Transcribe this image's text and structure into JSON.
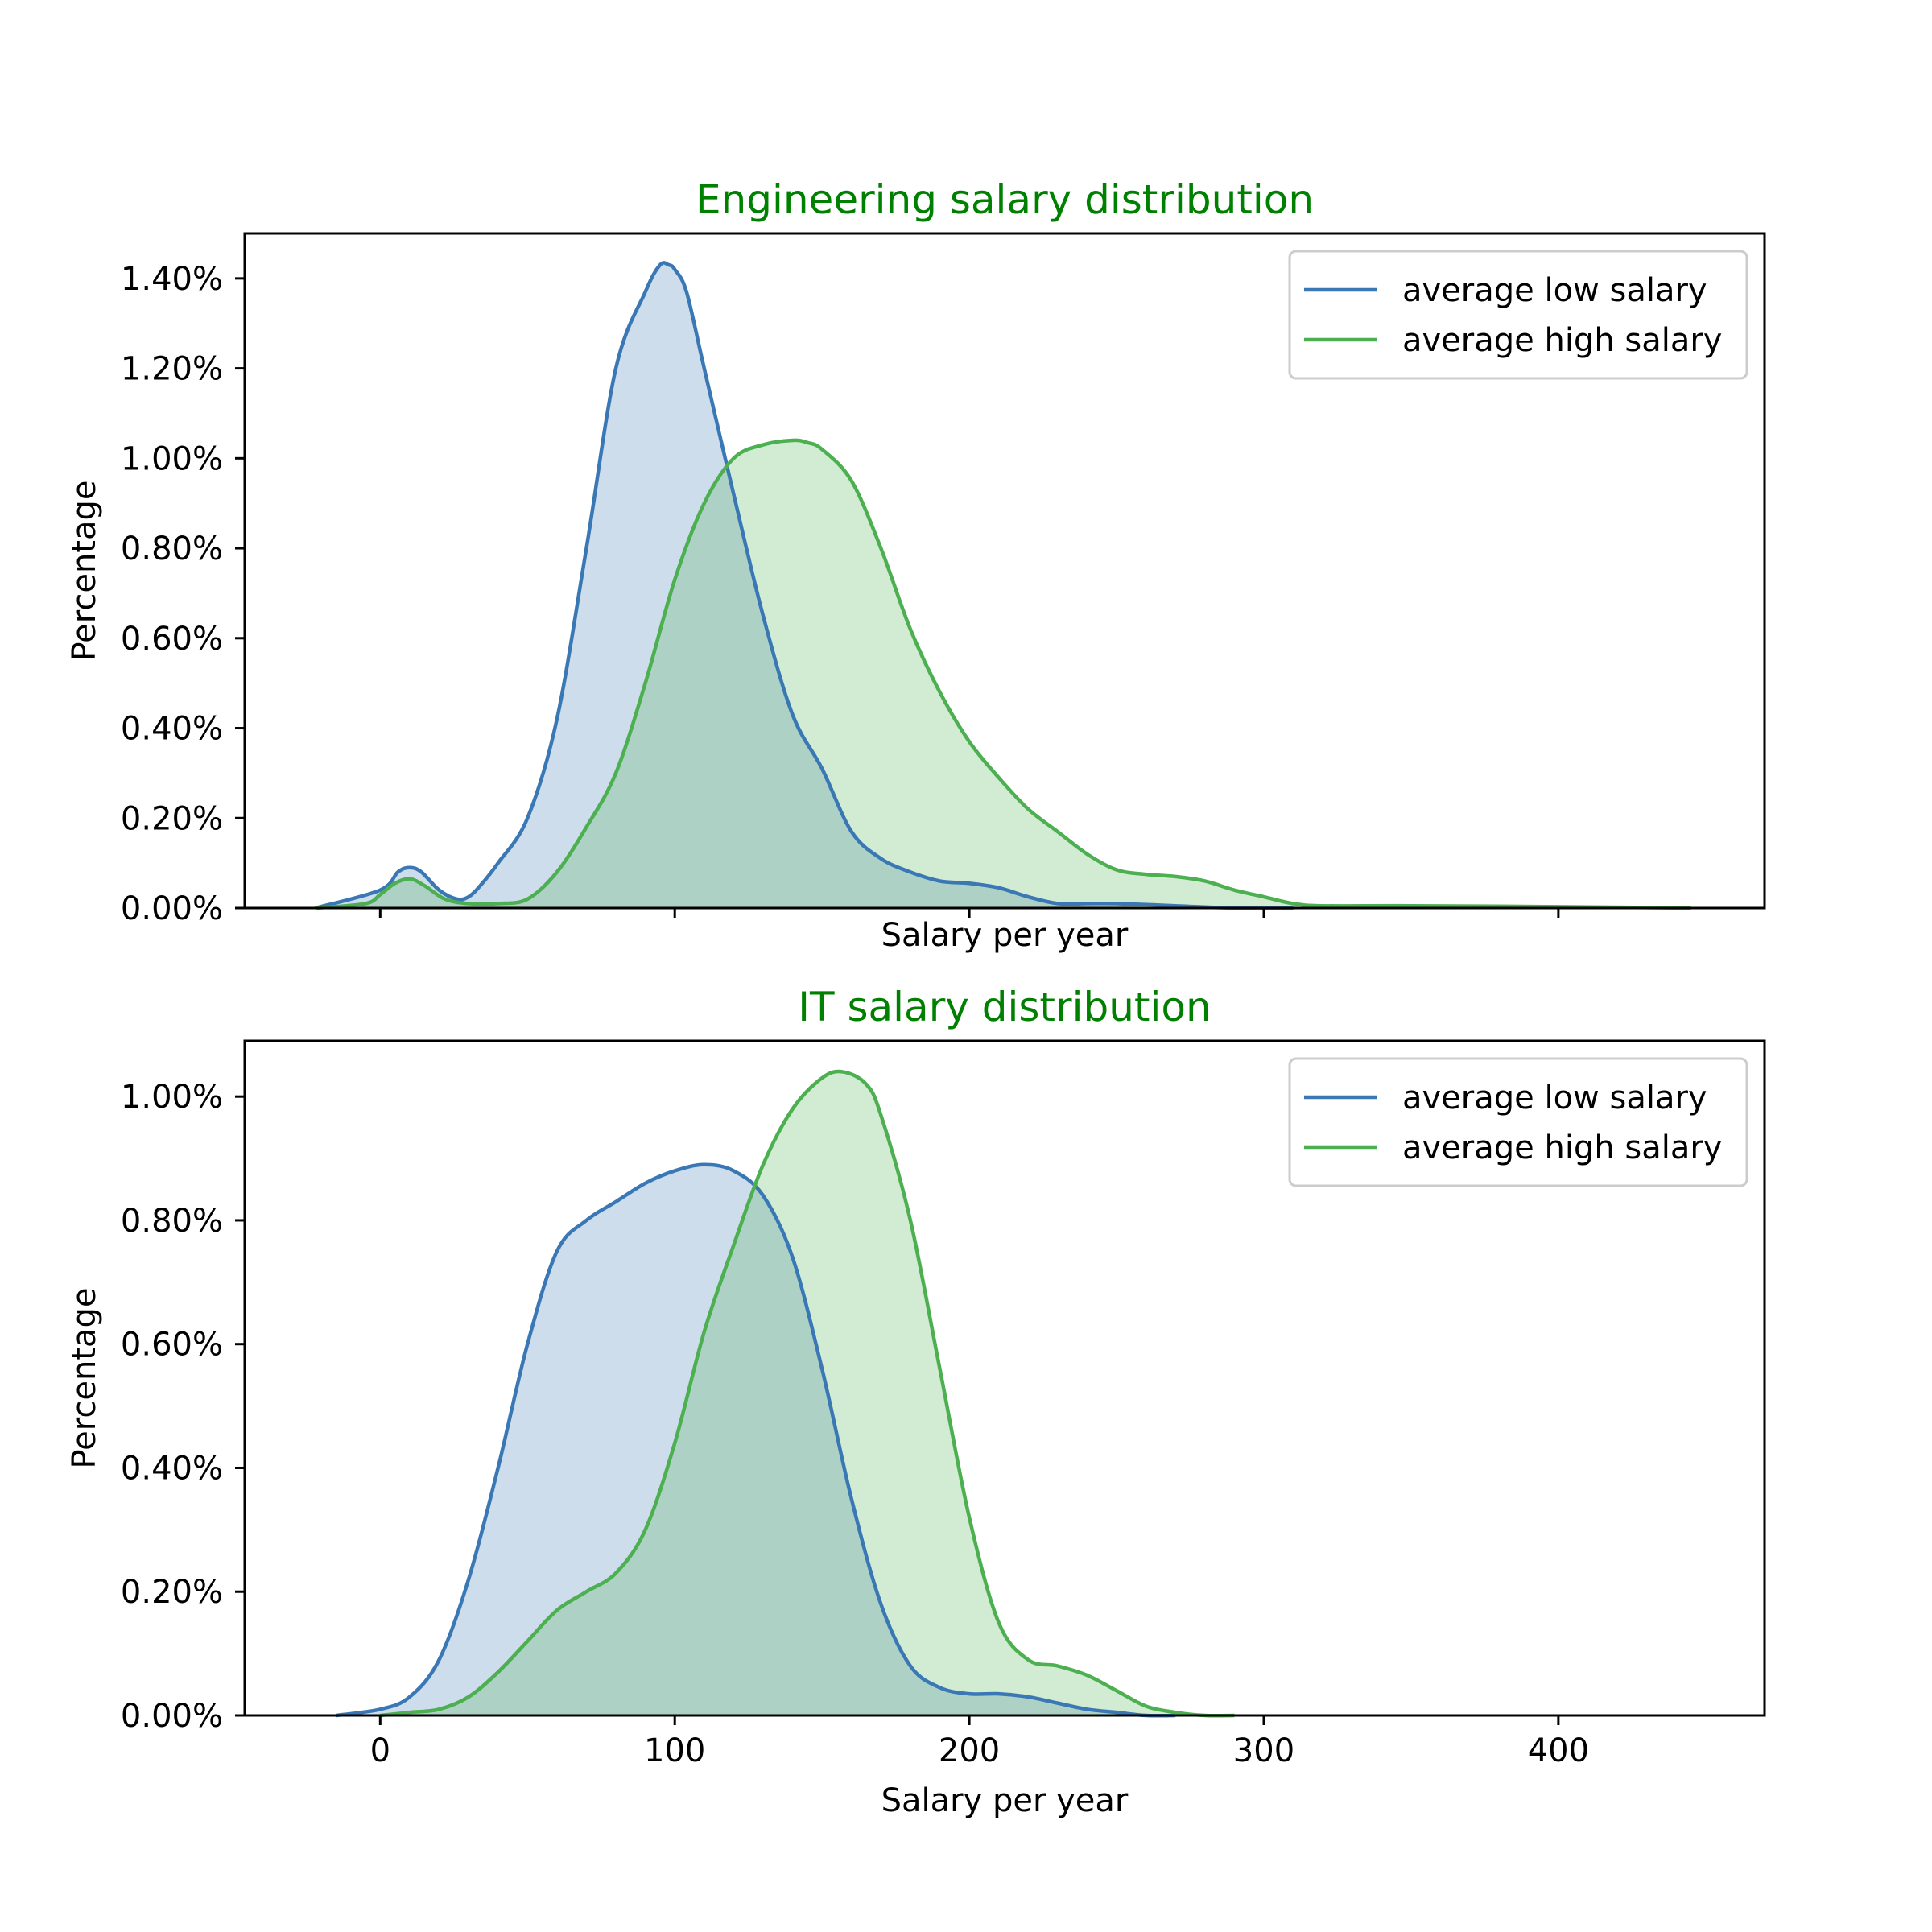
{
  "colors": {
    "low": "#3a78b5",
    "low_fill": "#cadcec",
    "high": "#4caf50",
    "high_fill": "#d2ebd3",
    "title": "#008000"
  },
  "chart_data": [
    {
      "type": "area",
      "title": "Engineering salary distribution",
      "xlabel": "Salary per year",
      "ylabel": "Percentage",
      "xlim": [
        -46,
        470
      ],
      "ylim": [
        0,
        1.5
      ],
      "x_ticks": [
        0,
        100,
        200,
        300,
        400
      ],
      "x_tick_labels_shown": false,
      "y_ticks": [
        0,
        0.2,
        0.4,
        0.6,
        0.8,
        1.0,
        1.2,
        1.4
      ],
      "y_tick_labels": [
        "0.00%",
        "0.20%",
        "0.40%",
        "0.60%",
        "0.80%",
        "1.00%",
        "1.20%",
        "1.40%"
      ],
      "legend_position": "upper right",
      "grid": false,
      "series": [
        {
          "name": "average low salary",
          "color_key": "low",
          "x": [
            -22,
            0,
            6,
            10,
            14,
            20,
            26,
            30,
            34,
            40,
            50,
            60,
            70,
            80,
            90,
            95,
            98,
            100,
            104,
            110,
            120,
            130,
            140,
            150,
            160,
            170,
            180,
            190,
            200,
            210,
            220,
            230,
            240,
            250,
            270,
            290,
            310
          ],
          "y": [
            0.0,
            0.04,
            0.08,
            0.09,
            0.08,
            0.04,
            0.02,
            0.025,
            0.05,
            0.1,
            0.2,
            0.42,
            0.8,
            1.2,
            1.37,
            1.43,
            1.43,
            1.42,
            1.37,
            1.2,
            0.92,
            0.65,
            0.43,
            0.31,
            0.17,
            0.11,
            0.08,
            0.06,
            0.055,
            0.045,
            0.025,
            0.01,
            0.01,
            0.01,
            0.005,
            0.0,
            0.0
          ]
        },
        {
          "name": "average high salary",
          "color_key": "high",
          "x": [
            -22,
            -5,
            0,
            5,
            10,
            15,
            22,
            30,
            40,
            50,
            60,
            70,
            80,
            90,
            100,
            110,
            120,
            130,
            140,
            145,
            150,
            160,
            170,
            180,
            190,
            200,
            210,
            220,
            230,
            240,
            250,
            260,
            270,
            280,
            290,
            300,
            310,
            320,
            350,
            400,
            445
          ],
          "y": [
            0.0,
            0.01,
            0.03,
            0.055,
            0.065,
            0.05,
            0.02,
            0.01,
            0.01,
            0.02,
            0.08,
            0.18,
            0.3,
            0.5,
            0.73,
            0.9,
            1.0,
            1.03,
            1.04,
            1.035,
            1.02,
            0.95,
            0.8,
            0.62,
            0.48,
            0.37,
            0.29,
            0.22,
            0.17,
            0.12,
            0.085,
            0.075,
            0.07,
            0.06,
            0.04,
            0.025,
            0.01,
            0.005,
            0.005,
            0.003,
            0.0
          ]
        }
      ]
    },
    {
      "type": "area",
      "title": "IT salary distribution",
      "xlabel": "Salary per year",
      "ylabel": "Percentage",
      "xlim": [
        -46,
        470
      ],
      "ylim": [
        0,
        1.09
      ],
      "x_ticks": [
        0,
        100,
        200,
        300,
        400
      ],
      "x_tick_labels": [
        "0",
        "100",
        "200",
        "300",
        "400"
      ],
      "y_ticks": [
        0,
        0.2,
        0.4,
        0.6,
        0.8,
        1.0
      ],
      "y_tick_labels": [
        "0.00%",
        "0.20%",
        "0.40%",
        "0.60%",
        "0.80%",
        "1.00%"
      ],
      "legend_position": "upper right",
      "grid": false,
      "series": [
        {
          "name": "average low salary",
          "color_key": "low",
          "x": [
            -15,
            0,
            10,
            20,
            30,
            40,
            50,
            60,
            70,
            80,
            90,
            100,
            110,
            120,
            130,
            140,
            150,
            160,
            170,
            180,
            190,
            200,
            210,
            220,
            230,
            240,
            250,
            260,
            270
          ],
          "y": [
            0.0,
            0.01,
            0.03,
            0.09,
            0.22,
            0.4,
            0.6,
            0.75,
            0.8,
            0.83,
            0.86,
            0.88,
            0.89,
            0.88,
            0.84,
            0.74,
            0.56,
            0.35,
            0.18,
            0.08,
            0.045,
            0.035,
            0.035,
            0.03,
            0.02,
            0.01,
            0.005,
            0.0,
            0.0
          ]
        },
        {
          "name": "average high salary",
          "color_key": "high",
          "x": [
            0,
            10,
            20,
            30,
            40,
            50,
            60,
            70,
            80,
            90,
            100,
            110,
            120,
            130,
            140,
            150,
            157,
            165,
            170,
            180,
            190,
            200,
            210,
            220,
            230,
            240,
            250,
            260,
            270,
            280,
            290
          ],
          "y": [
            0.0,
            0.005,
            0.01,
            0.03,
            0.07,
            0.12,
            0.17,
            0.2,
            0.23,
            0.3,
            0.44,
            0.62,
            0.76,
            0.89,
            0.98,
            1.03,
            1.04,
            1.02,
            0.97,
            0.8,
            0.56,
            0.32,
            0.15,
            0.09,
            0.08,
            0.065,
            0.04,
            0.015,
            0.005,
            0.0,
            0.0
          ]
        }
      ]
    }
  ]
}
